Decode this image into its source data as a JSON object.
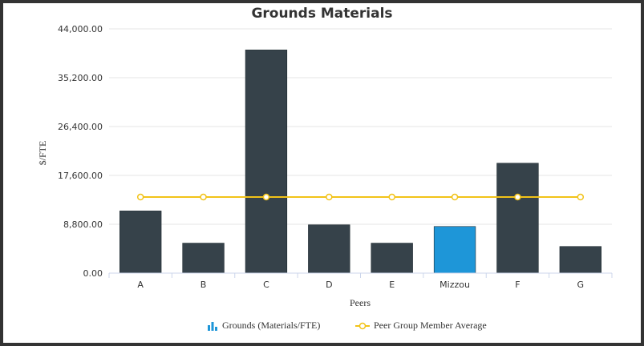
{
  "chart_data": {
    "type": "bar",
    "title": "Grounds Materials",
    "xlabel": "Peers",
    "ylabel": "$/FTE",
    "ylim": [
      0,
      44000
    ],
    "yticks": [
      0,
      8800,
      17600,
      26400,
      35200,
      44000
    ],
    "ytick_labels": [
      "0.00",
      "8,800.00",
      "17,600.00",
      "26,400.00",
      "35,200.00",
      "44,000.00"
    ],
    "categories": [
      "A",
      "B",
      "C",
      "D",
      "E",
      "Mizzou",
      "F",
      "G"
    ],
    "series": [
      {
        "name": "Grounds (Materials/FTE)",
        "type": "bar",
        "values": [
          11200,
          5400,
          40200,
          8700,
          5400,
          8400,
          19800,
          4800
        ],
        "color": "#36424a",
        "highlight_color": "#1e96d8",
        "highlight_category": "Mizzou"
      },
      {
        "name": "Peer Group Member Average",
        "type": "line",
        "values": [
          13700,
          13700,
          13700,
          13700,
          13700,
          13700,
          13700,
          13700
        ],
        "color": "#f2c318"
      }
    ],
    "grid": true,
    "legend_position": "bottom-center"
  }
}
